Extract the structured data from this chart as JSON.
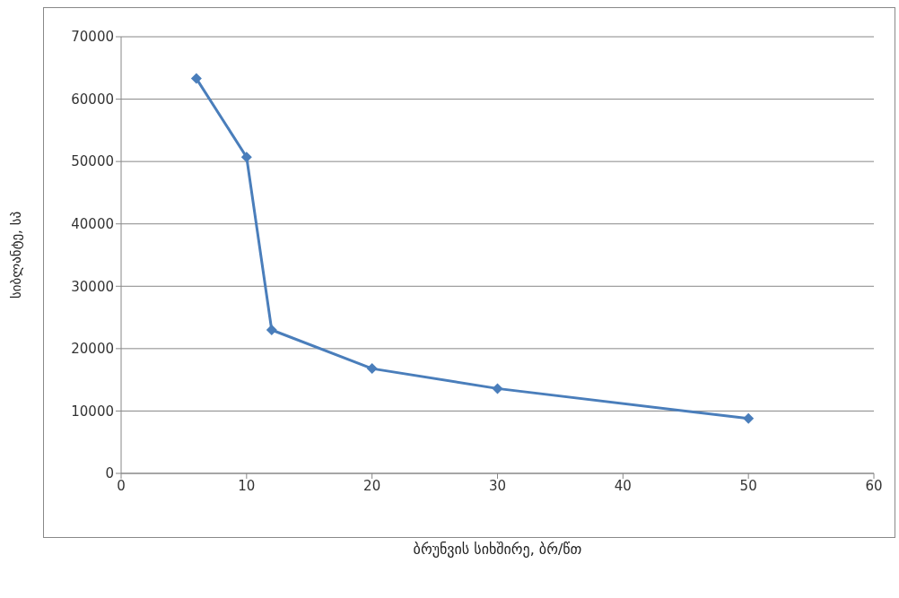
{
  "chart_data": {
    "type": "line",
    "xlabel": "ბრუნვის სიხშირე, ბრ/წთ",
    "ylabel": "სიბლანტე, სპ",
    "x": [
      6,
      10,
      12,
      20,
      30,
      50
    ],
    "series": [
      {
        "color": "#4a7ebb",
        "values": [
          63300,
          50700,
          23000,
          16800,
          13600,
          8800
        ]
      }
    ],
    "xlim": [
      0,
      60
    ],
    "xticks": [
      0,
      10,
      20,
      30,
      40,
      50,
      60
    ],
    "ylim": [
      0,
      70000
    ],
    "yticks": [
      0,
      10000,
      20000,
      30000,
      40000,
      50000,
      60000,
      70000
    ],
    "grid": "y",
    "marker": "diamond",
    "line_style": "solid",
    "legend": false
  }
}
